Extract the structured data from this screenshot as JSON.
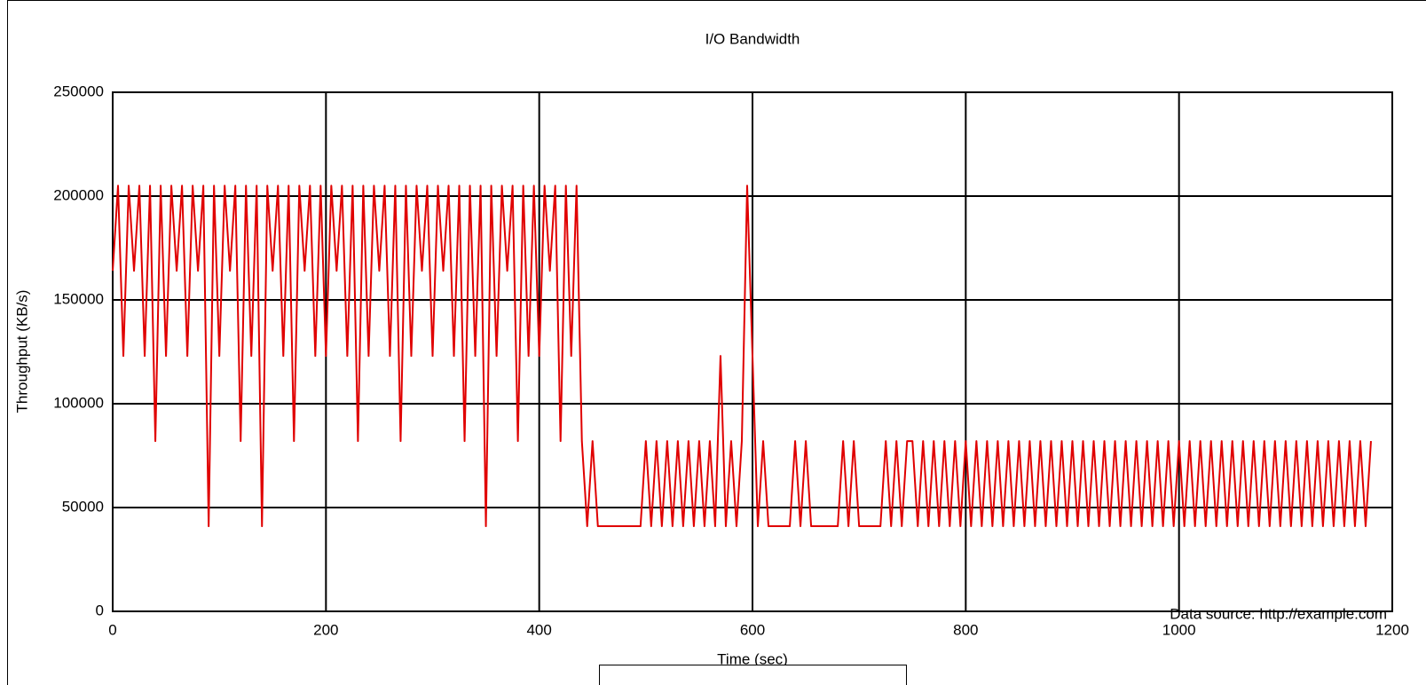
{
  "chart_data": {
    "type": "line",
    "title": "I/O Bandwidth",
    "x_label": "Time (sec)",
    "y_label": "Throughput (KB/s)",
    "annotation": "Data source: http://example.com",
    "xlim": [
      0,
      1200
    ],
    "xticks": [
      0,
      200,
      400,
      600,
      800,
      1000,
      1200
    ],
    "ylim": [
      0,
      250000
    ],
    "yticks": [
      0,
      50000,
      100000,
      150000,
      200000,
      250000
    ],
    "grid": true,
    "x": [
      0,
      5,
      10,
      15,
      20,
      25,
      30,
      35,
      40,
      45,
      50,
      55,
      60,
      65,
      70,
      75,
      80,
      85,
      90,
      95,
      100,
      105,
      110,
      115,
      120,
      125,
      130,
      135,
      140,
      145,
      150,
      155,
      160,
      165,
      170,
      175,
      180,
      185,
      190,
      195,
      200,
      205,
      210,
      215,
      220,
      225,
      230,
      235,
      240,
      245,
      250,
      255,
      260,
      265,
      270,
      275,
      280,
      285,
      290,
      295,
      300,
      305,
      310,
      315,
      320,
      325,
      330,
      335,
      340,
      345,
      350,
      355,
      360,
      365,
      370,
      375,
      380,
      385,
      390,
      395,
      400,
      405,
      410,
      415,
      420,
      425,
      430,
      435,
      440,
      445,
      450,
      455,
      460,
      465,
      470,
      475,
      480,
      485,
      490,
      495,
      500,
      505,
      510,
      515,
      520,
      525,
      530,
      535,
      540,
      545,
      550,
      555,
      560,
      565,
      570,
      575,
      580,
      585,
      590,
      595,
      600,
      605,
      610,
      615,
      620,
      625,
      630,
      635,
      640,
      645,
      650,
      655,
      660,
      665,
      670,
      675,
      680,
      685,
      690,
      695,
      700,
      705,
      710,
      715,
      720,
      725,
      730,
      735,
      740,
      745,
      750,
      755,
      760,
      765,
      770,
      775,
      780,
      785,
      790,
      795,
      800,
      805,
      810,
      815,
      820,
      825,
      830,
      835,
      840,
      845,
      850,
      855,
      860,
      865,
      870,
      875,
      880,
      885,
      890,
      895,
      900,
      905,
      910,
      915,
      920,
      925,
      930,
      935,
      940,
      945,
      950,
      955,
      960,
      965,
      970,
      975,
      980,
      985,
      990,
      995,
      1000,
      1005,
      1010,
      1015,
      1020,
      1025,
      1030,
      1035,
      1040,
      1045,
      1050,
      1055,
      1060,
      1065,
      1070,
      1075,
      1080,
      1085,
      1090,
      1095,
      1100,
      1105,
      1110,
      1115,
      1120,
      1125,
      1130,
      1135,
      1140,
      1145,
      1150,
      1155,
      1160,
      1165,
      1170,
      1175,
      1180
    ],
    "series": [
      {
        "color": "#e00000",
        "values": [
          164000,
          205000,
          123000,
          205000,
          164000,
          205000,
          123000,
          205000,
          82000,
          205000,
          123000,
          205000,
          164000,
          205000,
          123000,
          205000,
          164000,
          205000,
          41000,
          205000,
          123000,
          205000,
          164000,
          205000,
          82000,
          205000,
          123000,
          205000,
          41000,
          205000,
          164000,
          205000,
          123000,
          205000,
          82000,
          205000,
          164000,
          205000,
          123000,
          205000,
          123000,
          205000,
          164000,
          205000,
          123000,
          205000,
          82000,
          205000,
          123000,
          205000,
          164000,
          205000,
          123000,
          205000,
          82000,
          205000,
          123000,
          205000,
          164000,
          205000,
          123000,
          205000,
          164000,
          205000,
          123000,
          205000,
          82000,
          205000,
          123000,
          205000,
          41000,
          205000,
          123000,
          205000,
          164000,
          205000,
          82000,
          205000,
          123000,
          205000,
          123000,
          205000,
          164000,
          205000,
          82000,
          205000,
          123000,
          205000,
          82000,
          41000,
          82000,
          41000,
          41000,
          41000,
          41000,
          41000,
          41000,
          41000,
          41000,
          41000,
          82000,
          41000,
          82000,
          41000,
          82000,
          41000,
          82000,
          41000,
          82000,
          41000,
          82000,
          41000,
          82000,
          41000,
          123000,
          41000,
          82000,
          41000,
          82000,
          205000,
          123000,
          41000,
          82000,
          41000,
          41000,
          41000,
          41000,
          41000,
          82000,
          41000,
          82000,
          41000,
          41000,
          41000,
          41000,
          41000,
          41000,
          82000,
          41000,
          82000,
          41000,
          41000,
          41000,
          41000,
          41000,
          82000,
          41000,
          82000,
          41000,
          82000,
          82000,
          41000,
          82000,
          41000,
          82000,
          41000,
          82000,
          41000,
          82000,
          41000,
          82000,
          41000,
          82000,
          41000,
          82000,
          41000,
          82000,
          41000,
          82000,
          41000,
          82000,
          41000,
          82000,
          41000,
          82000,
          41000,
          82000,
          41000,
          82000,
          41000,
          82000,
          41000,
          82000,
          41000,
          82000,
          41000,
          82000,
          41000,
          82000,
          41000,
          82000,
          41000,
          82000,
          41000,
          82000,
          41000,
          82000,
          41000,
          82000,
          41000,
          82000,
          41000,
          82000,
          41000,
          82000,
          41000,
          82000,
          41000,
          82000,
          41000,
          82000,
          41000,
          82000,
          41000,
          82000,
          41000,
          82000,
          41000,
          82000,
          41000,
          82000,
          41000,
          82000,
          41000,
          82000,
          41000,
          82000,
          41000,
          82000,
          41000,
          82000,
          41000,
          82000,
          41000,
          82000,
          41000,
          82000
        ]
      }
    ]
  }
}
